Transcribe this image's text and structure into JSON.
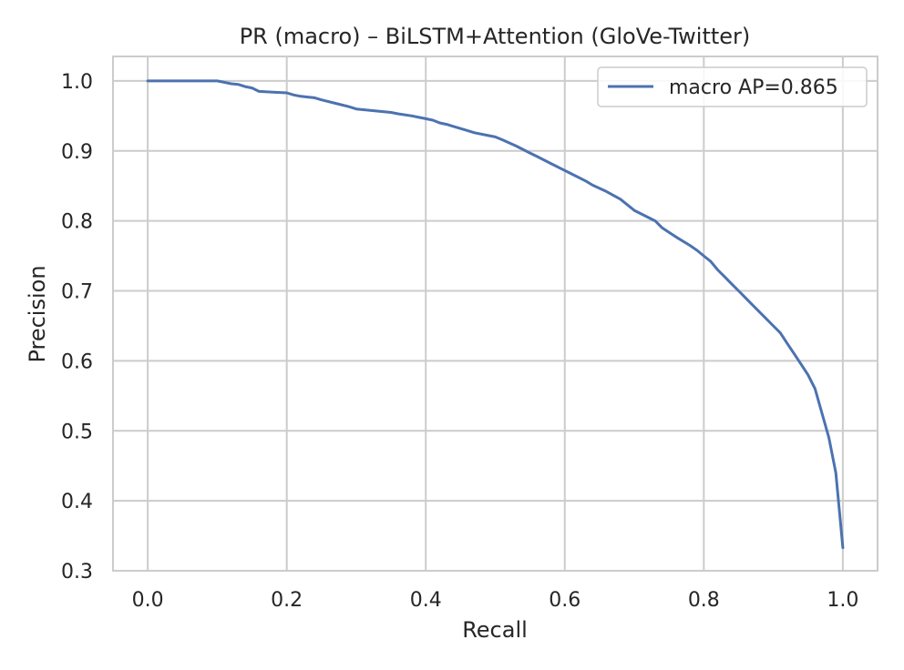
{
  "chart_data": {
    "type": "line",
    "title": "PR (macro) – BiLSTM+Attention (GloVe-Twitter)",
    "xlabel": "Recall",
    "ylabel": "Precision",
    "xlim": [
      -0.05,
      1.05
    ],
    "ylim": [
      0.3,
      1.035
    ],
    "xticks": [
      "0.0",
      "0.2",
      "0.4",
      "0.6",
      "0.8",
      "1.0"
    ],
    "yticks": [
      "0.3",
      "0.4",
      "0.5",
      "0.6",
      "0.7",
      "0.8",
      "0.9",
      "1.0"
    ],
    "grid": true,
    "legend_position": "upper right",
    "series": [
      {
        "name": "macro AP=0.865",
        "color": "#4c72b0",
        "x": [
          0.0,
          0.02,
          0.05,
          0.08,
          0.1,
          0.11,
          0.12,
          0.13,
          0.14,
          0.15,
          0.16,
          0.18,
          0.2,
          0.21,
          0.22,
          0.23,
          0.24,
          0.25,
          0.27,
          0.29,
          0.3,
          0.32,
          0.33,
          0.35,
          0.36,
          0.38,
          0.39,
          0.4,
          0.41,
          0.42,
          0.43,
          0.44,
          0.45,
          0.47,
          0.49,
          0.5,
          0.51,
          0.53,
          0.55,
          0.56,
          0.58,
          0.6,
          0.61,
          0.63,
          0.64,
          0.66,
          0.68,
          0.7,
          0.71,
          0.73,
          0.74,
          0.76,
          0.78,
          0.79,
          0.8,
          0.81,
          0.82,
          0.83,
          0.84,
          0.85,
          0.86,
          0.87,
          0.88,
          0.89,
          0.9,
          0.91,
          0.92,
          0.93,
          0.94,
          0.95,
          0.96,
          0.97,
          0.98,
          0.99,
          1.0
        ],
        "y": [
          1.0,
          1.0,
          1.0,
          1.0,
          1.0,
          0.998,
          0.996,
          0.995,
          0.992,
          0.99,
          0.985,
          0.984,
          0.983,
          0.98,
          0.978,
          0.977,
          0.976,
          0.973,
          0.968,
          0.963,
          0.96,
          0.958,
          0.957,
          0.955,
          0.953,
          0.95,
          0.948,
          0.946,
          0.944,
          0.94,
          0.938,
          0.935,
          0.932,
          0.926,
          0.922,
          0.92,
          0.916,
          0.907,
          0.897,
          0.892,
          0.882,
          0.872,
          0.867,
          0.857,
          0.851,
          0.842,
          0.831,
          0.815,
          0.81,
          0.8,
          0.79,
          0.777,
          0.765,
          0.758,
          0.75,
          0.742,
          0.73,
          0.72,
          0.71,
          0.7,
          0.69,
          0.68,
          0.67,
          0.66,
          0.65,
          0.64,
          0.625,
          0.61,
          0.595,
          0.58,
          0.56,
          0.525,
          0.49,
          0.44,
          0.333
        ]
      }
    ]
  }
}
